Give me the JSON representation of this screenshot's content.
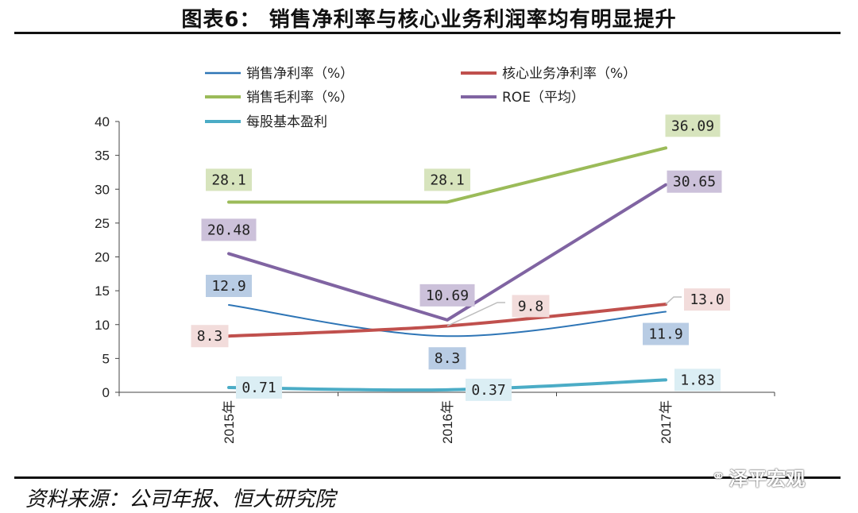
{
  "header": {
    "title": "图表6：   销售净利率与核心业务利润率均有明显提升"
  },
  "footer": {
    "source": "资料来源：公司年报、恒大研究院",
    "watermark": "泽平宏观"
  },
  "colors": {
    "net_margin": "#2E75B6",
    "core_margin": "#C0504D",
    "gross_margin": "#9BBB59",
    "roe": "#8064A2",
    "eps": "#4BACC6"
  },
  "chart_data": {
    "type": "line",
    "title": "",
    "xlabel": "",
    "ylabel": "",
    "ylim": [
      0,
      40
    ],
    "yticks": [
      "0",
      "5",
      "10",
      "15",
      "20",
      "25",
      "30",
      "35",
      "40"
    ],
    "categories": [
      "2015年",
      "2016年",
      "2017年"
    ],
    "series": [
      {
        "key": "net_margin",
        "name": "销售净利率（%）",
        "values": [
          12.9,
          8.3,
          11.9
        ],
        "labels": [
          "12.9",
          "8.3",
          "11.9"
        ]
      },
      {
        "key": "core_margin",
        "name": "核心业务净利率（%）",
        "values": [
          8.3,
          9.8,
          13.0
        ],
        "labels": [
          "8.3",
          "9.8",
          "13.0"
        ]
      },
      {
        "key": "gross_margin",
        "name": "销售毛利率（%）",
        "values": [
          28.1,
          28.1,
          36.09
        ],
        "labels": [
          "28.1",
          "28.1",
          "36.09"
        ]
      },
      {
        "key": "roe",
        "name": "ROE（平均）",
        "values": [
          20.48,
          10.69,
          30.65
        ],
        "labels": [
          "20.48",
          "10.69",
          "30.65"
        ]
      },
      {
        "key": "eps",
        "name": "每股基本盈利",
        "values": [
          0.71,
          0.37,
          1.83
        ],
        "labels": [
          "0.71",
          "0.37",
          "1.83"
        ]
      }
    ],
    "legend_position": "top"
  }
}
